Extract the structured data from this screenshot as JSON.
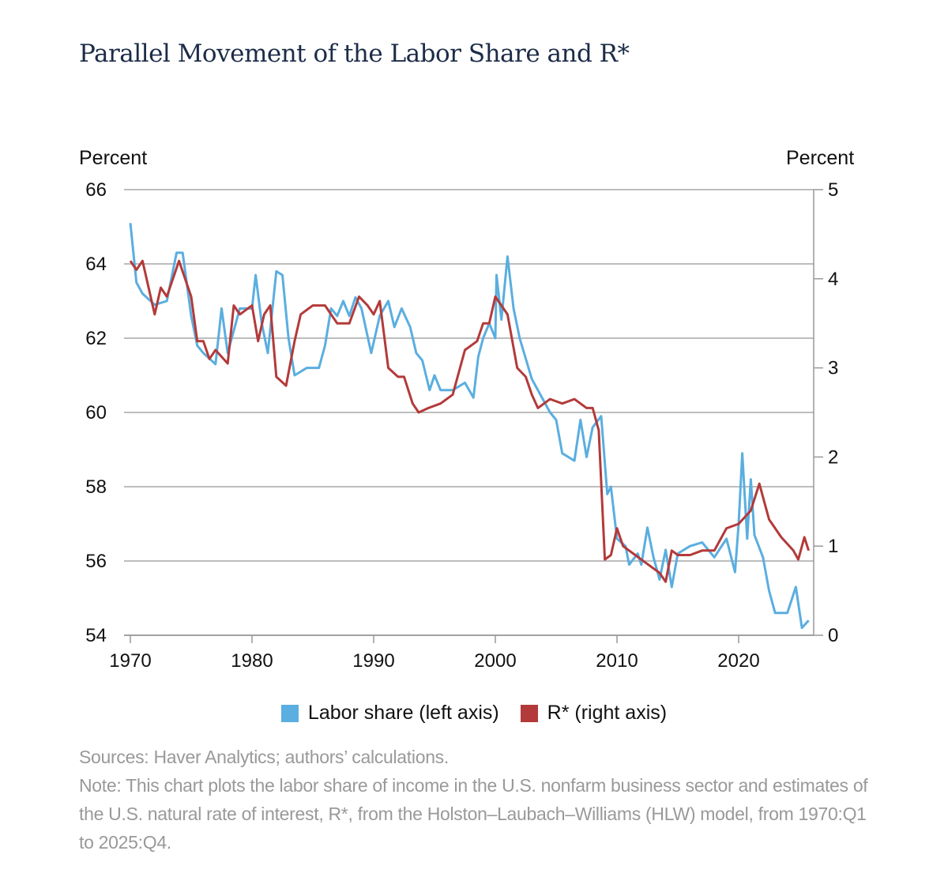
{
  "title": "Parallel Movement of the Labor Share and R*",
  "notes": {
    "sources": "Sources: Haver Analytics; authors’ calculations.",
    "note": "Note: This chart plots the labor share of income in the U.S. nonfarm business sector and estimates of the U.S. natural rate of interest, R*, from the Holston–Laubach–Williams (HLW) model, from 1970:Q1 to 2025:Q4."
  },
  "chart_data": {
    "type": "line",
    "left_axis": {
      "label": "Percent",
      "range": [
        54,
        66
      ],
      "ticks": [
        "54",
        "56",
        "58",
        "60",
        "62",
        "64",
        "66"
      ]
    },
    "right_axis": {
      "label": "Percent",
      "range": [
        0,
        5
      ],
      "ticks": [
        "0",
        "1",
        "2",
        "3",
        "4",
        "5"
      ]
    },
    "x_axis": {
      "range": [
        1970,
        2026
      ],
      "ticks": [
        "1970",
        "1980",
        "1990",
        "2000",
        "2010",
        "2020"
      ]
    },
    "grid": true,
    "legend_position": "bottom",
    "series": [
      {
        "name": "Labor share (left axis)",
        "axis": "left",
        "color": "#5aaee0",
        "points": [
          [
            1970.0,
            65.1
          ],
          [
            1970.5,
            63.5
          ],
          [
            1971,
            63.2
          ],
          [
            1972,
            62.9
          ],
          [
            1973,
            63.0
          ],
          [
            1973.8,
            64.3
          ],
          [
            1974.3,
            64.3
          ],
          [
            1975,
            62.6
          ],
          [
            1975.5,
            61.8
          ],
          [
            1976,
            61.6
          ],
          [
            1977,
            61.3
          ],
          [
            1977.5,
            62.8
          ],
          [
            1978,
            61.6
          ],
          [
            1979,
            62.8
          ],
          [
            1980,
            62.8
          ],
          [
            1980.3,
            63.7
          ],
          [
            1980.8,
            62.4
          ],
          [
            1981.3,
            61.6
          ],
          [
            1982,
            63.8
          ],
          [
            1982.5,
            63.7
          ],
          [
            1983,
            62.0
          ],
          [
            1983.5,
            61.0
          ],
          [
            1984.5,
            61.2
          ],
          [
            1985.5,
            61.2
          ],
          [
            1986,
            61.8
          ],
          [
            1986.5,
            62.8
          ],
          [
            1987,
            62.6
          ],
          [
            1987.5,
            63.0
          ],
          [
            1988,
            62.6
          ],
          [
            1988.5,
            63.1
          ],
          [
            1989,
            62.8
          ],
          [
            1989.8,
            61.6
          ],
          [
            1990.5,
            62.6
          ],
          [
            1991.2,
            63.0
          ],
          [
            1991.7,
            62.3
          ],
          [
            1992.3,
            62.8
          ],
          [
            1993,
            62.3
          ],
          [
            1993.5,
            61.6
          ],
          [
            1994,
            61.4
          ],
          [
            1994.6,
            60.6
          ],
          [
            1995,
            61.0
          ],
          [
            1995.5,
            60.6
          ],
          [
            1996.5,
            60.6
          ],
          [
            1997.5,
            60.8
          ],
          [
            1998.2,
            60.4
          ],
          [
            1998.6,
            61.5
          ],
          [
            1999,
            62.0
          ],
          [
            1999.5,
            62.4
          ],
          [
            2000,
            62.0
          ],
          [
            2000.1,
            63.7
          ],
          [
            2000.5,
            62.5
          ],
          [
            2001,
            64.2
          ],
          [
            2001.5,
            62.8
          ],
          [
            2002,
            62.0
          ],
          [
            2003,
            60.9
          ],
          [
            2004,
            60.3
          ],
          [
            2004.5,
            60.0
          ],
          [
            2005,
            59.8
          ],
          [
            2005.5,
            58.9
          ],
          [
            2006.5,
            58.7
          ],
          [
            2007,
            59.8
          ],
          [
            2007.5,
            58.8
          ],
          [
            2008,
            59.6
          ],
          [
            2008.7,
            59.9
          ],
          [
            2009.2,
            57.8
          ],
          [
            2009.5,
            58.0
          ],
          [
            2010,
            56.6
          ],
          [
            2010.7,
            56.4
          ],
          [
            2011,
            55.9
          ],
          [
            2011.7,
            56.2
          ],
          [
            2012,
            55.9
          ],
          [
            2012.5,
            56.9
          ],
          [
            2013,
            56.1
          ],
          [
            2013.5,
            55.5
          ],
          [
            2014,
            56.3
          ],
          [
            2014.5,
            55.3
          ],
          [
            2015,
            56.2
          ],
          [
            2016,
            56.4
          ],
          [
            2017,
            56.5
          ],
          [
            2018,
            56.1
          ],
          [
            2019,
            56.6
          ],
          [
            2019.7,
            55.7
          ],
          [
            2020,
            57.0
          ],
          [
            2020.3,
            58.9
          ],
          [
            2020.7,
            56.6
          ],
          [
            2021,
            58.2
          ],
          [
            2021.3,
            56.7
          ],
          [
            2022,
            56.1
          ],
          [
            2022.5,
            55.2
          ],
          [
            2023,
            54.6
          ],
          [
            2024,
            54.6
          ],
          [
            2024.7,
            55.3
          ],
          [
            2025.2,
            54.2
          ],
          [
            2025.75,
            54.4
          ]
        ]
      },
      {
        "name": "R* (right axis)",
        "axis": "right",
        "color": "#b33a3a",
        "points": [
          [
            1970,
            4.2
          ],
          [
            1970.5,
            4.1
          ],
          [
            1971,
            4.2
          ],
          [
            1971.5,
            3.9
          ],
          [
            1972,
            3.6
          ],
          [
            1972.5,
            3.9
          ],
          [
            1973,
            3.8
          ],
          [
            1974,
            4.2
          ],
          [
            1974.5,
            4.0
          ],
          [
            1975,
            3.8
          ],
          [
            1975.5,
            3.3
          ],
          [
            1976,
            3.3
          ],
          [
            1976.5,
            3.1
          ],
          [
            1977,
            3.2
          ],
          [
            1978,
            3.05
          ],
          [
            1978.5,
            3.7
          ],
          [
            1979,
            3.6
          ],
          [
            1980,
            3.7
          ],
          [
            1980.5,
            3.3
          ],
          [
            1981,
            3.6
          ],
          [
            1981.5,
            3.7
          ],
          [
            1982,
            2.9
          ],
          [
            1982.8,
            2.8
          ],
          [
            1983.5,
            3.3
          ],
          [
            1984,
            3.6
          ],
          [
            1985,
            3.7
          ],
          [
            1986,
            3.7
          ],
          [
            1987,
            3.5
          ],
          [
            1988,
            3.5
          ],
          [
            1988.8,
            3.8
          ],
          [
            1989.5,
            3.7
          ],
          [
            1990,
            3.6
          ],
          [
            1990.5,
            3.75
          ],
          [
            1991.2,
            3.0
          ],
          [
            1992,
            2.9
          ],
          [
            1992.5,
            2.9
          ],
          [
            1993.2,
            2.6
          ],
          [
            1993.7,
            2.5
          ],
          [
            1994.5,
            2.55
          ],
          [
            1995.5,
            2.6
          ],
          [
            1996.5,
            2.7
          ],
          [
            1997.5,
            3.2
          ],
          [
            1998.5,
            3.3
          ],
          [
            1999,
            3.5
          ],
          [
            1999.5,
            3.5
          ],
          [
            2000,
            3.8
          ],
          [
            2000.5,
            3.7
          ],
          [
            2001,
            3.6
          ],
          [
            2001.8,
            3.0
          ],
          [
            2002.5,
            2.9
          ],
          [
            2003,
            2.7
          ],
          [
            2003.5,
            2.55
          ],
          [
            2004.5,
            2.65
          ],
          [
            2005.5,
            2.6
          ],
          [
            2006.5,
            2.65
          ],
          [
            2007.5,
            2.55
          ],
          [
            2008,
            2.55
          ],
          [
            2008.5,
            2.3
          ],
          [
            2009,
            0.85
          ],
          [
            2009.5,
            0.9
          ],
          [
            2010,
            1.2
          ],
          [
            2010.5,
            1.0
          ],
          [
            2011.5,
            0.9
          ],
          [
            2012.5,
            0.8
          ],
          [
            2013.5,
            0.7
          ],
          [
            2014,
            0.6
          ],
          [
            2014.5,
            0.95
          ],
          [
            2015,
            0.9
          ],
          [
            2016,
            0.9
          ],
          [
            2017,
            0.95
          ],
          [
            2018,
            0.95
          ],
          [
            2019,
            1.2
          ],
          [
            2020,
            1.25
          ],
          [
            2021,
            1.4
          ],
          [
            2021.7,
            1.7
          ],
          [
            2022.5,
            1.3
          ],
          [
            2023.5,
            1.1
          ],
          [
            2024.5,
            0.95
          ],
          [
            2024.9,
            0.85
          ],
          [
            2025.4,
            1.1
          ],
          [
            2025.75,
            0.95
          ]
        ]
      }
    ]
  }
}
